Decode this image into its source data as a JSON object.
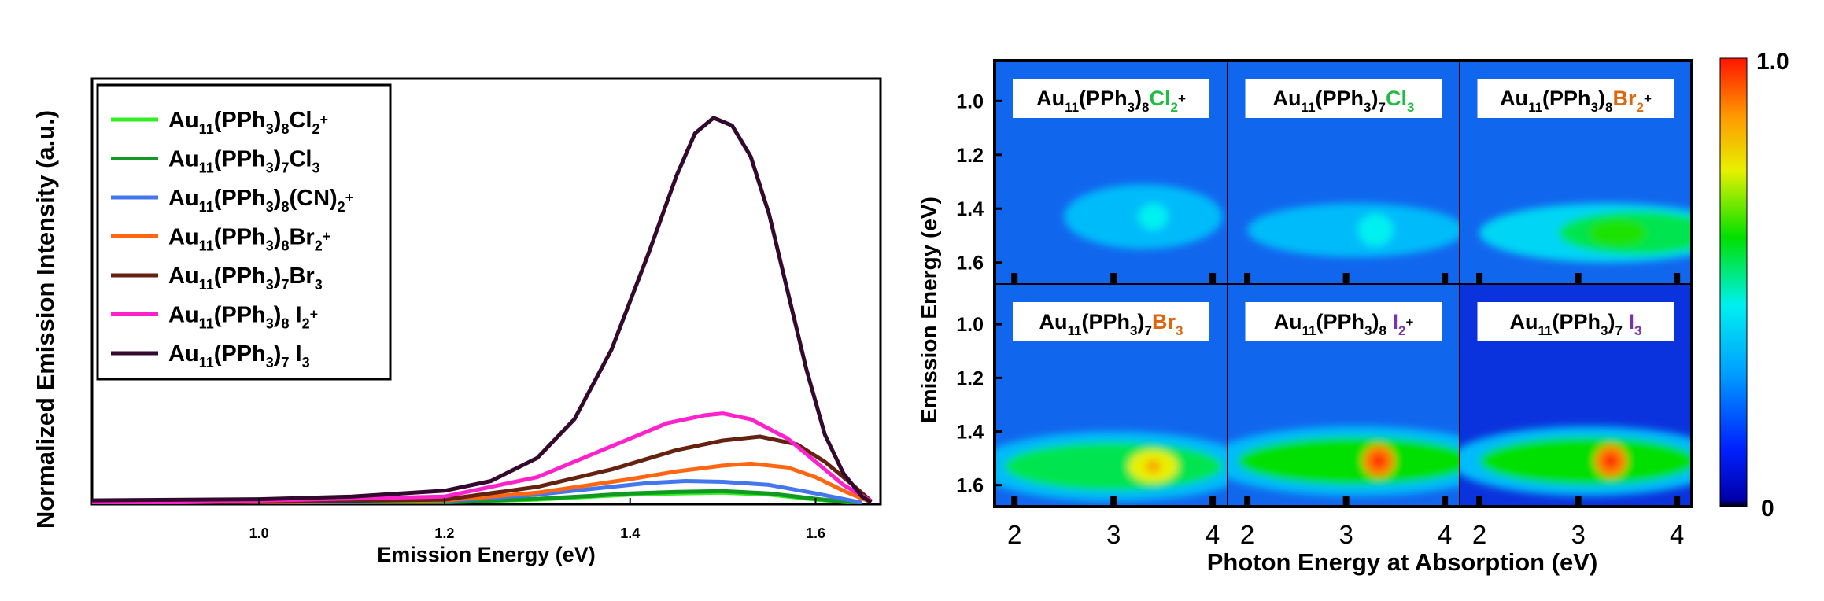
{
  "chart_data": [
    {
      "type": "line",
      "xlabel": "Emission Energy (eV)",
      "ylabel": "Normalized Emission Intensity (a.u.)",
      "xlim": [
        0.82,
        1.67
      ],
      "ylim": [
        0,
        1.02
      ],
      "x_ticks": [
        "1.0",
        "1.2",
        "1.4",
        "1.6"
      ],
      "legend_position": "top-left",
      "grid": false,
      "series": [
        {
          "name_parts": [
            "Au",
            "11",
            "(PPh",
            "3",
            ")",
            "8",
            "Cl",
            "2",
            "+"
          ],
          "color": "#33ee22",
          "points": [
            [
              0.82,
              0
            ],
            [
              1.2,
              0.005
            ],
            [
              1.3,
              0.012
            ],
            [
              1.36,
              0.02
            ],
            [
              1.4,
              0.025
            ],
            [
              1.45,
              0.028
            ],
            [
              1.5,
              0.03
            ],
            [
              1.55,
              0.025
            ],
            [
              1.6,
              0.012
            ],
            [
              1.65,
              0.002
            ]
          ]
        },
        {
          "name_parts": [
            "Au",
            "11",
            "(PPh",
            "3",
            ")",
            "7",
            "Cl",
            "3",
            ""
          ],
          "color": "#119922",
          "points": [
            [
              0.82,
              0
            ],
            [
              1.2,
              0.005
            ],
            [
              1.3,
              0.014
            ],
            [
              1.36,
              0.022
            ],
            [
              1.4,
              0.028
            ],
            [
              1.45,
              0.032
            ],
            [
              1.5,
              0.034
            ],
            [
              1.55,
              0.028
            ],
            [
              1.6,
              0.014
            ],
            [
              1.65,
              0.002
            ]
          ]
        },
        {
          "name_parts": [
            "Au",
            "11",
            "(PPh",
            "3",
            ")",
            "8",
            "(CN)",
            "2",
            "+"
          ],
          "color": "#4477ee",
          "points": [
            [
              0.82,
              0
            ],
            [
              1.2,
              0.008
            ],
            [
              1.3,
              0.025
            ],
            [
              1.38,
              0.045
            ],
            [
              1.42,
              0.055
            ],
            [
              1.46,
              0.06
            ],
            [
              1.5,
              0.058
            ],
            [
              1.55,
              0.05
            ],
            [
              1.6,
              0.028
            ],
            [
              1.65,
              0.004
            ]
          ]
        },
        {
          "name_parts": [
            "Au",
            "11",
            "(PPh",
            "3",
            ")",
            "8",
            "Br",
            "2",
            "+"
          ],
          "color": "#ff6611",
          "points": [
            [
              0.82,
              0
            ],
            [
              1.2,
              0.01
            ],
            [
              1.3,
              0.03
            ],
            [
              1.4,
              0.065
            ],
            [
              1.45,
              0.085
            ],
            [
              1.5,
              0.1
            ],
            [
              1.53,
              0.105
            ],
            [
              1.57,
              0.095
            ],
            [
              1.6,
              0.07
            ],
            [
              1.63,
              0.035
            ],
            [
              1.66,
              0.005
            ]
          ]
        },
        {
          "name_parts": [
            "Au",
            "11",
            "(PPh",
            "3",
            ")",
            "7",
            "Br",
            "3",
            ""
          ],
          "color": "#662211",
          "points": [
            [
              0.82,
              0
            ],
            [
              1.2,
              0.012
            ],
            [
              1.3,
              0.045
            ],
            [
              1.38,
              0.09
            ],
            [
              1.45,
              0.14
            ],
            [
              1.5,
              0.165
            ],
            [
              1.54,
              0.175
            ],
            [
              1.58,
              0.155
            ],
            [
              1.61,
              0.11
            ],
            [
              1.64,
              0.05
            ],
            [
              1.66,
              0.008
            ]
          ]
        },
        {
          "name_parts": [
            "Au",
            "11",
            "(PPh",
            "3",
            ")",
            "8",
            " I",
            "2",
            "+"
          ],
          "color": "#ff22cc",
          "points": [
            [
              0.82,
              0
            ],
            [
              1.2,
              0.02
            ],
            [
              1.3,
              0.07
            ],
            [
              1.38,
              0.15
            ],
            [
              1.44,
              0.21
            ],
            [
              1.48,
              0.23
            ],
            [
              1.5,
              0.235
            ],
            [
              1.53,
              0.22
            ],
            [
              1.57,
              0.17
            ],
            [
              1.6,
              0.11
            ],
            [
              1.63,
              0.05
            ],
            [
              1.66,
              0.008
            ]
          ]
        },
        {
          "name_parts": [
            "Au",
            "11",
            "(PPh",
            "3",
            ")",
            "7",
            " I",
            "3",
            ""
          ],
          "color": "#330a2e",
          "points": [
            [
              0.82,
              0.01
            ],
            [
              1.0,
              0.013
            ],
            [
              1.1,
              0.02
            ],
            [
              1.2,
              0.035
            ],
            [
              1.25,
              0.06
            ],
            [
              1.3,
              0.12
            ],
            [
              1.34,
              0.22
            ],
            [
              1.38,
              0.4
            ],
            [
              1.42,
              0.65
            ],
            [
              1.45,
              0.85
            ],
            [
              1.47,
              0.96
            ],
            [
              1.49,
              1.0
            ],
            [
              1.51,
              0.98
            ],
            [
              1.53,
              0.9
            ],
            [
              1.55,
              0.75
            ],
            [
              1.57,
              0.55
            ],
            [
              1.59,
              0.35
            ],
            [
              1.61,
              0.18
            ],
            [
              1.63,
              0.08
            ],
            [
              1.65,
              0.02
            ],
            [
              1.66,
              0.005
            ]
          ]
        }
      ]
    },
    {
      "type": "heatmap",
      "xlabel": "Photon Energy at Absorption (eV)",
      "ylabel": "Emission Energy (eV)",
      "x_ticks": [
        "2",
        "3",
        "4"
      ],
      "y_ticks": [
        "1.0",
        "1.2",
        "1.4",
        "1.6"
      ],
      "xlim": [
        1.8,
        4.15
      ],
      "ylim": [
        0.85,
        1.68
      ],
      "colorbar": {
        "min_label": "0",
        "max_label": "1.0"
      },
      "panels": [
        {
          "label_parts": [
            "Au",
            "11",
            "(PPh",
            "3",
            ")",
            "8",
            "Cl",
            "2",
            "+"
          ],
          "ligand_color": "#22bb44",
          "background": "#1166ee",
          "blobs": [
            {
              "x": 3.3,
              "y": 1.43,
              "rx": 0.8,
              "ry": 0.12,
              "level": 0.35
            },
            {
              "x": 3.4,
              "y": 1.43,
              "rx": 0.15,
              "ry": 0.05,
              "level": 0.45
            }
          ]
        },
        {
          "label_parts": [
            "Au",
            "11",
            "(PPh",
            "3",
            ")",
            "7",
            "Cl",
            "3",
            ""
          ],
          "ligand_color": "#22bb44",
          "background": "#1166ee",
          "blobs": [
            {
              "x": 3.1,
              "y": 1.48,
              "rx": 1.1,
              "ry": 0.1,
              "level": 0.35
            },
            {
              "x": 3.3,
              "y": 1.48,
              "rx": 0.18,
              "ry": 0.06,
              "level": 0.45
            }
          ]
        },
        {
          "label_parts": [
            "Au",
            "11",
            "(PPh",
            "3",
            ")",
            "8",
            "Br",
            "2",
            "+"
          ],
          "ligand_color": "#dd6611",
          "background": "#1166ee",
          "blobs": [
            {
              "x": 3.3,
              "y": 1.49,
              "rx": 1.3,
              "ry": 0.11,
              "level": 0.4
            },
            {
              "x": 3.6,
              "y": 1.49,
              "rx": 0.8,
              "ry": 0.08,
              "level": 0.55
            },
            {
              "x": 3.4,
              "y": 1.49,
              "rx": 0.3,
              "ry": 0.05,
              "level": 0.62
            }
          ]
        },
        {
          "label_parts": [
            "Au",
            "11",
            "(PPh",
            "3",
            ")",
            "7",
            "Br",
            "3",
            ""
          ],
          "ligand_color": "#dd6611",
          "background": "#1166ee",
          "blobs": [
            {
              "x": 3.0,
              "y": 1.53,
              "rx": 1.4,
              "ry": 0.13,
              "level": 0.35
            },
            {
              "x": 3.0,
              "y": 1.53,
              "rx": 1.1,
              "ry": 0.09,
              "level": 0.55
            },
            {
              "x": 3.4,
              "y": 1.53,
              "rx": 0.25,
              "ry": 0.06,
              "level": 0.75
            },
            {
              "x": 3.4,
              "y": 1.53,
              "rx": 0.08,
              "ry": 0.025,
              "level": 0.85
            }
          ]
        },
        {
          "label_parts": [
            "Au",
            "11",
            "(PPh",
            "3",
            ")",
            "8",
            " I",
            "2",
            "+"
          ],
          "ligand_color": "#7733aa",
          "background": "#1166ee",
          "blobs": [
            {
              "x": 3.1,
              "y": 1.51,
              "rx": 1.5,
              "ry": 0.13,
              "level": 0.35
            },
            {
              "x": 3.1,
              "y": 1.51,
              "rx": 1.2,
              "ry": 0.09,
              "level": 0.6
            },
            {
              "x": 3.33,
              "y": 1.51,
              "rx": 0.16,
              "ry": 0.06,
              "level": 0.9
            },
            {
              "x": 3.33,
              "y": 1.51,
              "rx": 0.07,
              "ry": 0.025,
              "level": 1.0
            }
          ]
        },
        {
          "label_parts": [
            "Au",
            "11",
            "(PPh",
            "3",
            ")",
            "7",
            " I",
            "3",
            ""
          ],
          "ligand_color": "#7733aa",
          "background": "#0b33dd",
          "blobs": [
            {
              "x": 3.1,
              "y": 1.51,
              "rx": 1.4,
              "ry": 0.13,
              "level": 0.35
            },
            {
              "x": 3.1,
              "y": 1.51,
              "rx": 1.1,
              "ry": 0.09,
              "level": 0.6
            },
            {
              "x": 3.33,
              "y": 1.51,
              "rx": 0.16,
              "ry": 0.06,
              "level": 0.9
            },
            {
              "x": 3.33,
              "y": 1.51,
              "rx": 0.07,
              "ry": 0.025,
              "level": 1.0
            }
          ]
        }
      ]
    }
  ]
}
